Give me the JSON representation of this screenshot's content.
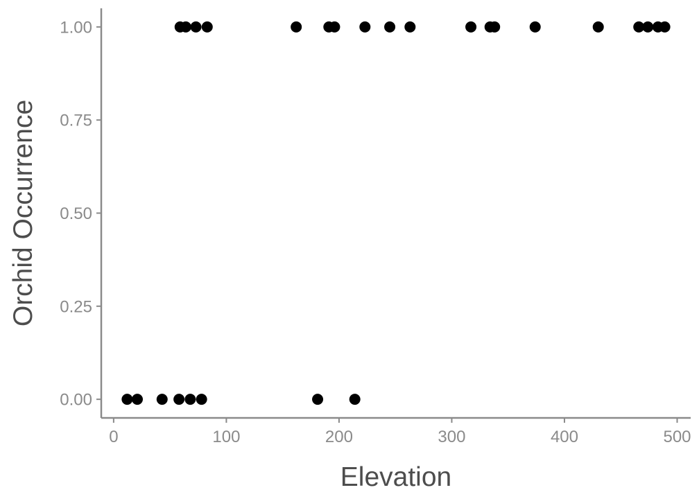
{
  "chart_data": {
    "type": "scatter",
    "title": "",
    "xlabel": "Elevation",
    "ylabel": "Orchid Occurrence",
    "xlim": [
      -11,
      512
    ],
    "ylim": [
      -0.05,
      1.05
    ],
    "x_ticks": [
      0,
      100,
      200,
      300,
      400,
      500
    ],
    "x_tick_labels": [
      "0",
      "100",
      "200",
      "300",
      "400",
      "500"
    ],
    "y_ticks": [
      0,
      0.25,
      0.5,
      0.75,
      1
    ],
    "y_tick_labels": [
      "0.00",
      "0.25",
      "0.50",
      "0.75",
      "1.00"
    ],
    "grid": false,
    "point_color": "#000000",
    "axis_color": "#8a8a8a",
    "points": [
      {
        "x": 12,
        "y": 0
      },
      {
        "x": 21,
        "y": 0
      },
      {
        "x": 43,
        "y": 0
      },
      {
        "x": 58,
        "y": 0
      },
      {
        "x": 68,
        "y": 0
      },
      {
        "x": 78,
        "y": 0
      },
      {
        "x": 181,
        "y": 0
      },
      {
        "x": 214,
        "y": 0
      },
      {
        "x": 59,
        "y": 1
      },
      {
        "x": 64,
        "y": 1
      },
      {
        "x": 73,
        "y": 1
      },
      {
        "x": 83,
        "y": 1
      },
      {
        "x": 162,
        "y": 1
      },
      {
        "x": 191,
        "y": 1
      },
      {
        "x": 196,
        "y": 1
      },
      {
        "x": 223,
        "y": 1
      },
      {
        "x": 245,
        "y": 1
      },
      {
        "x": 263,
        "y": 1
      },
      {
        "x": 317,
        "y": 1
      },
      {
        "x": 334,
        "y": 1
      },
      {
        "x": 338,
        "y": 1
      },
      {
        "x": 374,
        "y": 1
      },
      {
        "x": 430,
        "y": 1
      },
      {
        "x": 466,
        "y": 1
      },
      {
        "x": 474,
        "y": 1
      },
      {
        "x": 483,
        "y": 1
      },
      {
        "x": 489,
        "y": 1
      }
    ]
  }
}
